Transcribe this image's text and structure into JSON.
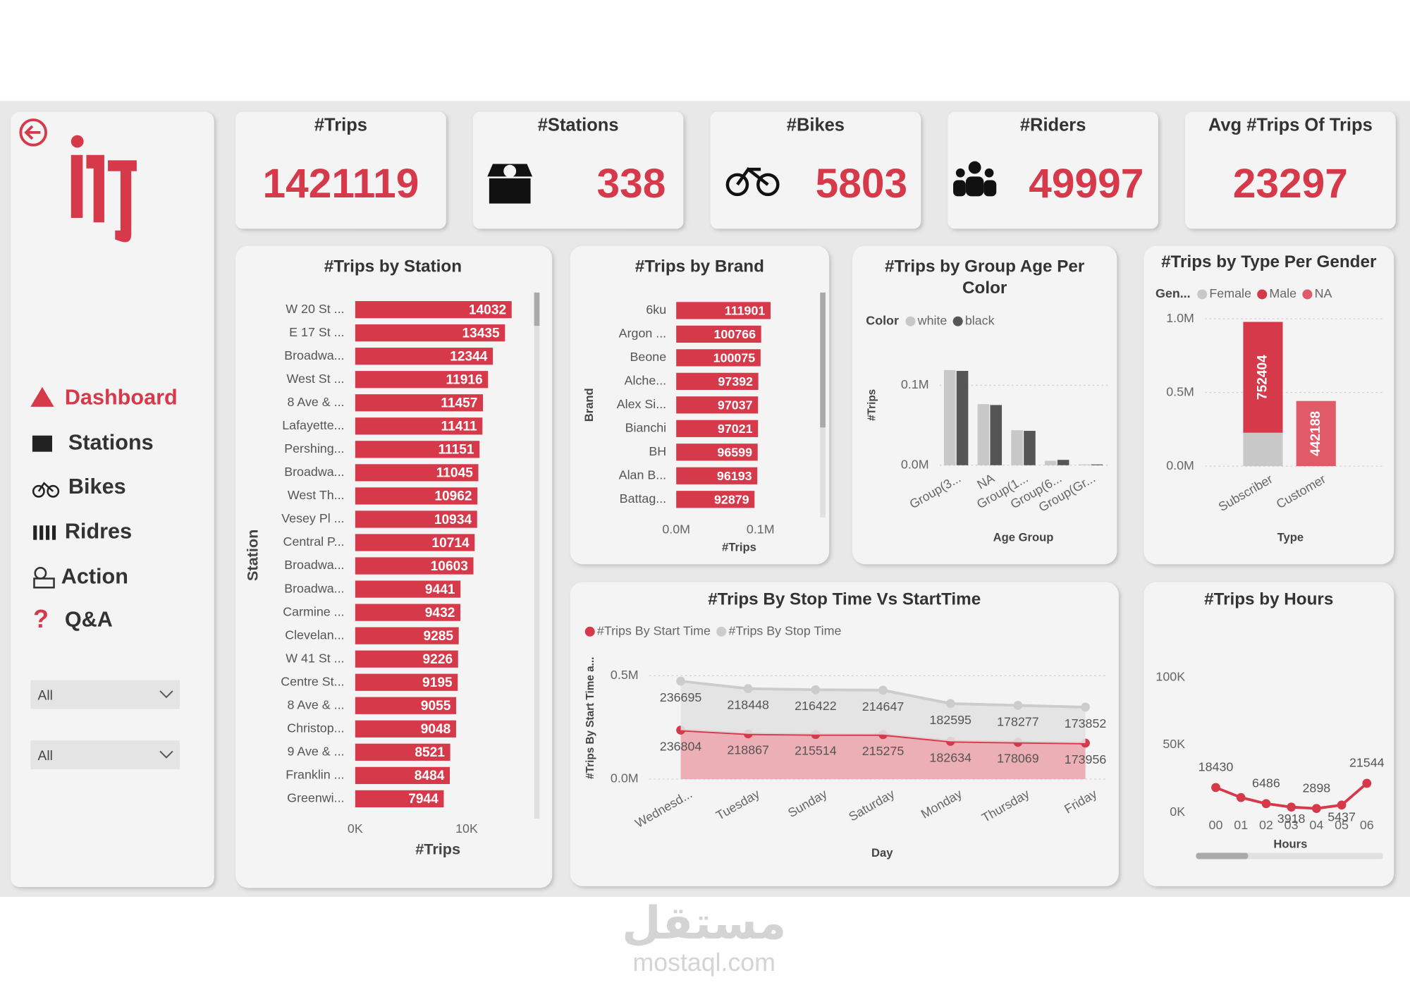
{
  "sidebar": {
    "nav": [
      "Dashboard",
      "Stations",
      "Bikes",
      "Ridres",
      "Action",
      "Q&A"
    ],
    "filters": [
      "All",
      "All"
    ]
  },
  "kpis": [
    {
      "label": "#Trips",
      "value": 1421119
    },
    {
      "label": "#Stations",
      "value": 338
    },
    {
      "label": "#Bikes",
      "value": 5803
    },
    {
      "label": "#Riders",
      "value": 49997
    },
    {
      "label": "Avg #Trips Of Trips",
      "value": 23297
    }
  ],
  "watermark": {
    "arabic": "مستقل",
    "latin": "mostaql.com"
  },
  "chart_data": [
    {
      "type": "barh",
      "title": "#Trips by Station",
      "x_label": "#Trips",
      "y_label": "Station",
      "color": "#d63a4a",
      "categories": [
        "W 20 St ...",
        "E 17 St ...",
        "Broadwa...",
        "West St ...",
        "8 Ave & ...",
        "Lafayette...",
        "Pershing...",
        "Broadwa...",
        "West Th...",
        "Vesey Pl ...",
        "Central P...",
        "Broadwa...",
        "Broadwa...",
        "Carmine ...",
        "Clevelan...",
        "W 41 St ...",
        "Centre St...",
        "8 Ave & ...",
        "Christop...",
        "9 Ave & ...",
        "Franklin ...",
        "Greenwi..."
      ],
      "values": [
        14032,
        13435,
        12344,
        11916,
        11457,
        11411,
        11151,
        11045,
        10962,
        10934,
        10714,
        10603,
        9441,
        9432,
        9285,
        9226,
        9195,
        9055,
        9048,
        8521,
        8484,
        7944
      ],
      "xlim": [
        0,
        15000
      ],
      "xticks": [
        {
          "value": 0,
          "label": "0K"
        },
        {
          "value": 10000,
          "label": "10K"
        }
      ]
    },
    {
      "type": "barh",
      "title": "#Trips by Brand",
      "x_label": "#Trips",
      "y_label": "Brand",
      "color": "#d63a4a",
      "categories": [
        "6ku",
        "Argon ...",
        "Beone",
        "Alche...",
        "Alex Si...",
        "Bianchi",
        "BH",
        "Alan B...",
        "Battag..."
      ],
      "values": [
        111901,
        100766,
        100075,
        97392,
        97037,
        97021,
        96599,
        96193,
        92879
      ],
      "xlim": [
        0,
        160000
      ],
      "xticks": [
        {
          "value": 0,
          "label": "0.0M"
        },
        {
          "value": 100000,
          "label": "0.1M"
        }
      ]
    },
    {
      "type": "bar",
      "title": "#Trips by Group Age Per Color",
      "legend_title": "Color",
      "x_label": "Age Group",
      "y_label": "#Trips",
      "categories": [
        "Group(3...",
        "NA",
        "Group(1...",
        "Group(6...",
        "Group(Gr..."
      ],
      "series": [
        {
          "name": "white",
          "color": "#c8c8c8",
          "values": [
            119000,
            76400,
            43800,
            5600,
            1100
          ]
        },
        {
          "name": "black",
          "color": "#555555",
          "values": [
            118000,
            75300,
            43000,
            6700,
            1000
          ]
        }
      ],
      "ylim": [
        0,
        135000
      ],
      "yticks": [
        {
          "value": 0,
          "label": "0.0M"
        },
        {
          "value": 100000,
          "label": "0.1M"
        }
      ],
      "grid": true
    },
    {
      "type": "stacked_bar",
      "title": "#Trips by Type Per Gender",
      "legend_title": "Gen...",
      "x_label": "Type",
      "categories": [
        "Subscriber",
        "Customer"
      ],
      "series": [
        {
          "name": "Female",
          "color": "#c8c8c8",
          "values": [
            226527,
            null
          ]
        },
        {
          "name": "Male",
          "color": "#d63a4a",
          "values": [
            752404,
            null
          ],
          "data_labels": true
        },
        {
          "name": "NA",
          "color": "#e05a68",
          "values": [
            null,
            442188
          ],
          "data_labels": true
        }
      ],
      "ylim": [
        0,
        1050000
      ],
      "yticks": [
        {
          "value": 0,
          "label": "0.0M"
        },
        {
          "value": 500000,
          "label": "0.5M"
        },
        {
          "value": 1000000,
          "label": "1.0M"
        }
      ],
      "grid": true
    },
    {
      "type": "stacked_area",
      "title": "#Trips By Stop Time Vs StartTime",
      "x_label": "Day",
      "y_label": "#Trips By Start Time a...",
      "categories": [
        "Wednesd...",
        "Tuesday",
        "Sunday",
        "Saturday",
        "Monday",
        "Thursday",
        "Friday"
      ],
      "series": [
        {
          "name": "#Trips By Start Time",
          "color": "#d63a4a",
          "values": [
            236804,
            218867,
            215514,
            215275,
            182634,
            178069,
            173956
          ]
        },
        {
          "name": "#Trips By Stop Time",
          "color": "#cccccc",
          "values": [
            236695,
            218448,
            216422,
            214647,
            182595,
            178277,
            173852
          ]
        }
      ],
      "ylim": [
        0,
        550000
      ],
      "yticks": [
        {
          "value": 0,
          "label": "0.0M"
        },
        {
          "value": 500000,
          "label": "0.5M"
        }
      ],
      "grid": true
    },
    {
      "type": "line",
      "title": "#Trips by Hours",
      "x_label": "Hours",
      "color": "#d63a4a",
      "categories": [
        "00",
        "01",
        "02",
        "03",
        "04",
        "05",
        "06"
      ],
      "values": [
        18430,
        11000,
        6486,
        3918,
        2898,
        5437,
        21544
      ],
      "value_labels": [
        "18430",
        null,
        "6486",
        "3918",
        "2898",
        "5437",
        "21544"
      ],
      "ylim": [
        0,
        110000
      ],
      "yticks": [
        {
          "value": 0,
          "label": "0K"
        },
        {
          "value": 50000,
          "label": "50K"
        },
        {
          "value": 100000,
          "label": "100K"
        }
      ],
      "grid": false
    }
  ]
}
